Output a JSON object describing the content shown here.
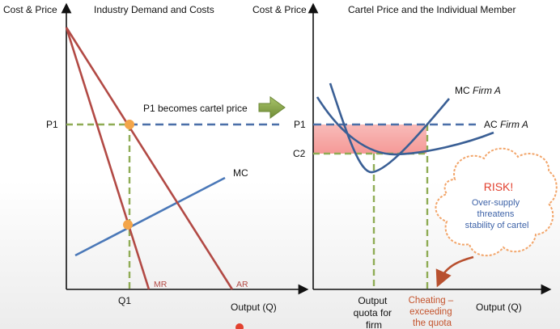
{
  "left_panel": {
    "title": "Industry Demand and Costs",
    "y_axis_label": "Cost & Price",
    "x_axis_label": "Output (Q)",
    "p1_label": "P1",
    "q1_label": "Q1",
    "mc_label": "MC",
    "mr_label": "MR",
    "ar_label": "AR",
    "callout": "P1 becomes cartel price"
  },
  "right_panel": {
    "title": "Cartel Price and the Individual Member",
    "y_axis_label": "Cost & Price",
    "x_axis_label": "Output (Q)",
    "p1_label": "P1",
    "c2_label": "C2",
    "mc_label_prefix": "MC ",
    "mc_label_firm": "Firm A",
    "ac_label_prefix": "AC ",
    "ac_label_firm": "Firm A",
    "quota_label_lines": [
      "Output",
      "quota for",
      "firm"
    ],
    "cheating_label_lines": [
      "Cheating –",
      "exceeding",
      "the quota"
    ]
  },
  "risk_cloud": {
    "heading": "RISK!",
    "lines": [
      "Over-supply",
      "threatens",
      "stability of cartel"
    ]
  },
  "colors": {
    "dashed_price": "#4a6fa8",
    "dashed_green": "#8fac55",
    "curve_red": "#b24a45",
    "curve_blue": "#4a78b8",
    "curve_navy": "#3a5f95",
    "point": "#f3a54a",
    "arrow_fill": "#8aa94a",
    "profit_band": "#f6a5a3",
    "risk_red": "#e2412f",
    "cloud_text": "#3e63a8",
    "cheating_text": "#c4542d"
  }
}
